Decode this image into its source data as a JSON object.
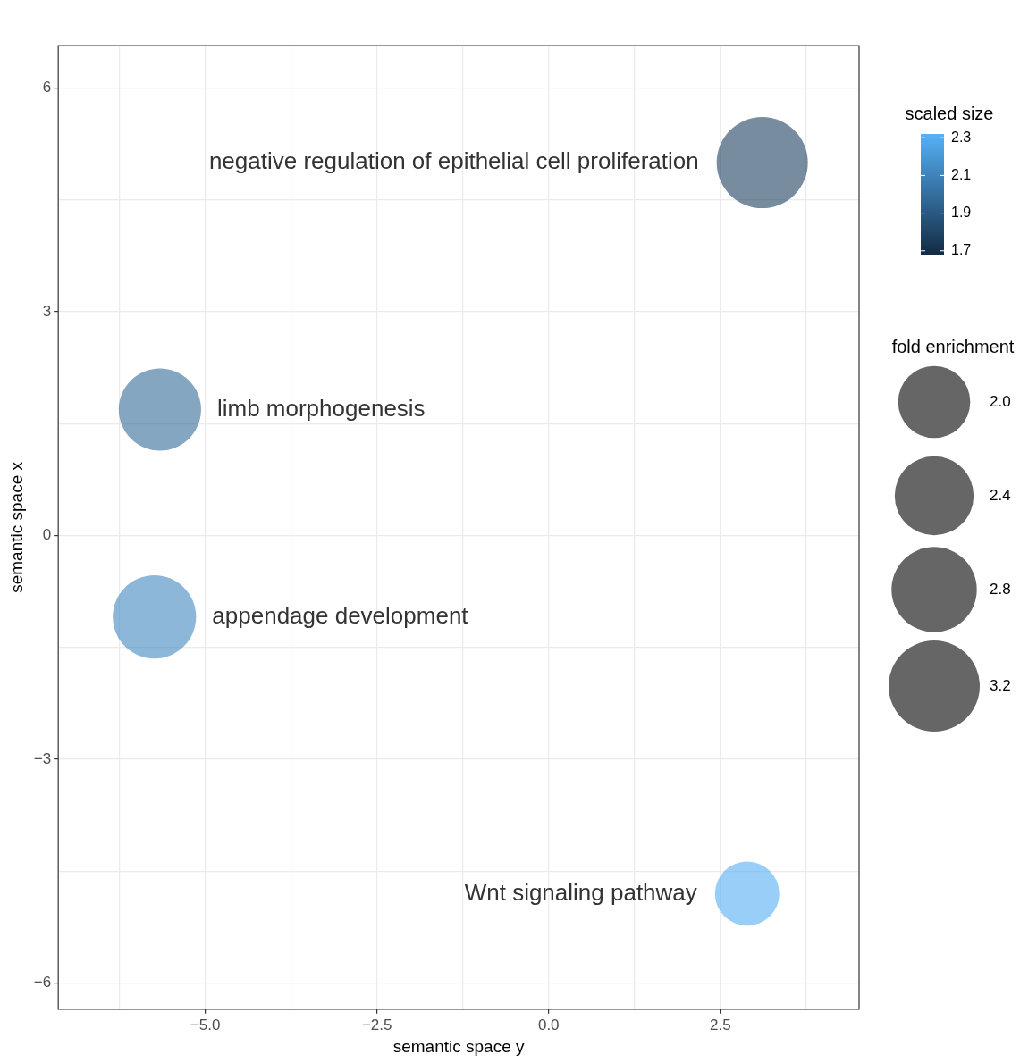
{
  "chart_data": {
    "type": "bubble",
    "xlabel": "semantic space y",
    "ylabel": "semantic space x",
    "clabel": "scaled size",
    "legend_title": "fold enrichment",
    "xlim": [
      -7.14,
      4.52
    ],
    "ylim": [
      -6.35,
      6.57
    ],
    "xticks": [
      {
        "value": -6.25,
        "label": null
      },
      {
        "value": -5,
        "label": "−5.0"
      },
      {
        "value": -3.75,
        "label": null
      },
      {
        "value": -2.5,
        "label": "−2.5"
      },
      {
        "value": -1.25,
        "label": null
      },
      {
        "value": 0,
        "label": "0.0"
      },
      {
        "value": 1.25,
        "label": null
      },
      {
        "value": 2.5,
        "label": "2.5"
      },
      {
        "value": 3.75,
        "label": null
      }
    ],
    "yticks": [
      {
        "value": -6,
        "label": "−6"
      },
      {
        "value": -4.5,
        "label": null
      },
      {
        "value": -3,
        "label": "−3"
      },
      {
        "value": -1.5,
        "label": null
      },
      {
        "value": 0,
        "label": "0"
      },
      {
        "value": 1.5,
        "label": null
      },
      {
        "value": 3,
        "label": "3"
      },
      {
        "value": 4.5,
        "label": null
      },
      {
        "value": 6,
        "label": "6"
      }
    ],
    "clim": [
      1.68,
      2.32
    ],
    "cticks": [
      1.7,
      1.9,
      2.1,
      2.3
    ],
    "size_legend": [
      {
        "value": 2,
        "label": "2.0"
      },
      {
        "value": 2.4,
        "label": "2.4"
      },
      {
        "value": 2.8,
        "label": "2.8"
      },
      {
        "value": 3.2,
        "label": "3.2"
      }
    ],
    "grid": true,
    "series": [
      {
        "x": [
          3.11,
          -5.66,
          -5.74,
          2.89
        ],
        "values": [
          5.0,
          1.69,
          -1.09,
          -4.8
        ],
        "sizes": [
          3.2,
          2.61,
          2.67,
          1.59
        ],
        "cvalues": [
          1.78,
          1.98,
          2.12,
          2.3
        ]
      }
    ],
    "annotations": [
      {
        "text": "negative regulation of epithelial cell proliferation",
        "x": 3.11,
        "y": 5.0
      },
      {
        "text": "limb morphogenesis",
        "x": -5.66,
        "y": 1.69
      },
      {
        "text": "appendage development",
        "x": -5.74,
        "y": -1.09
      },
      {
        "text": "Wnt signaling pathway",
        "x": 2.89,
        "y": -4.8
      }
    ]
  }
}
